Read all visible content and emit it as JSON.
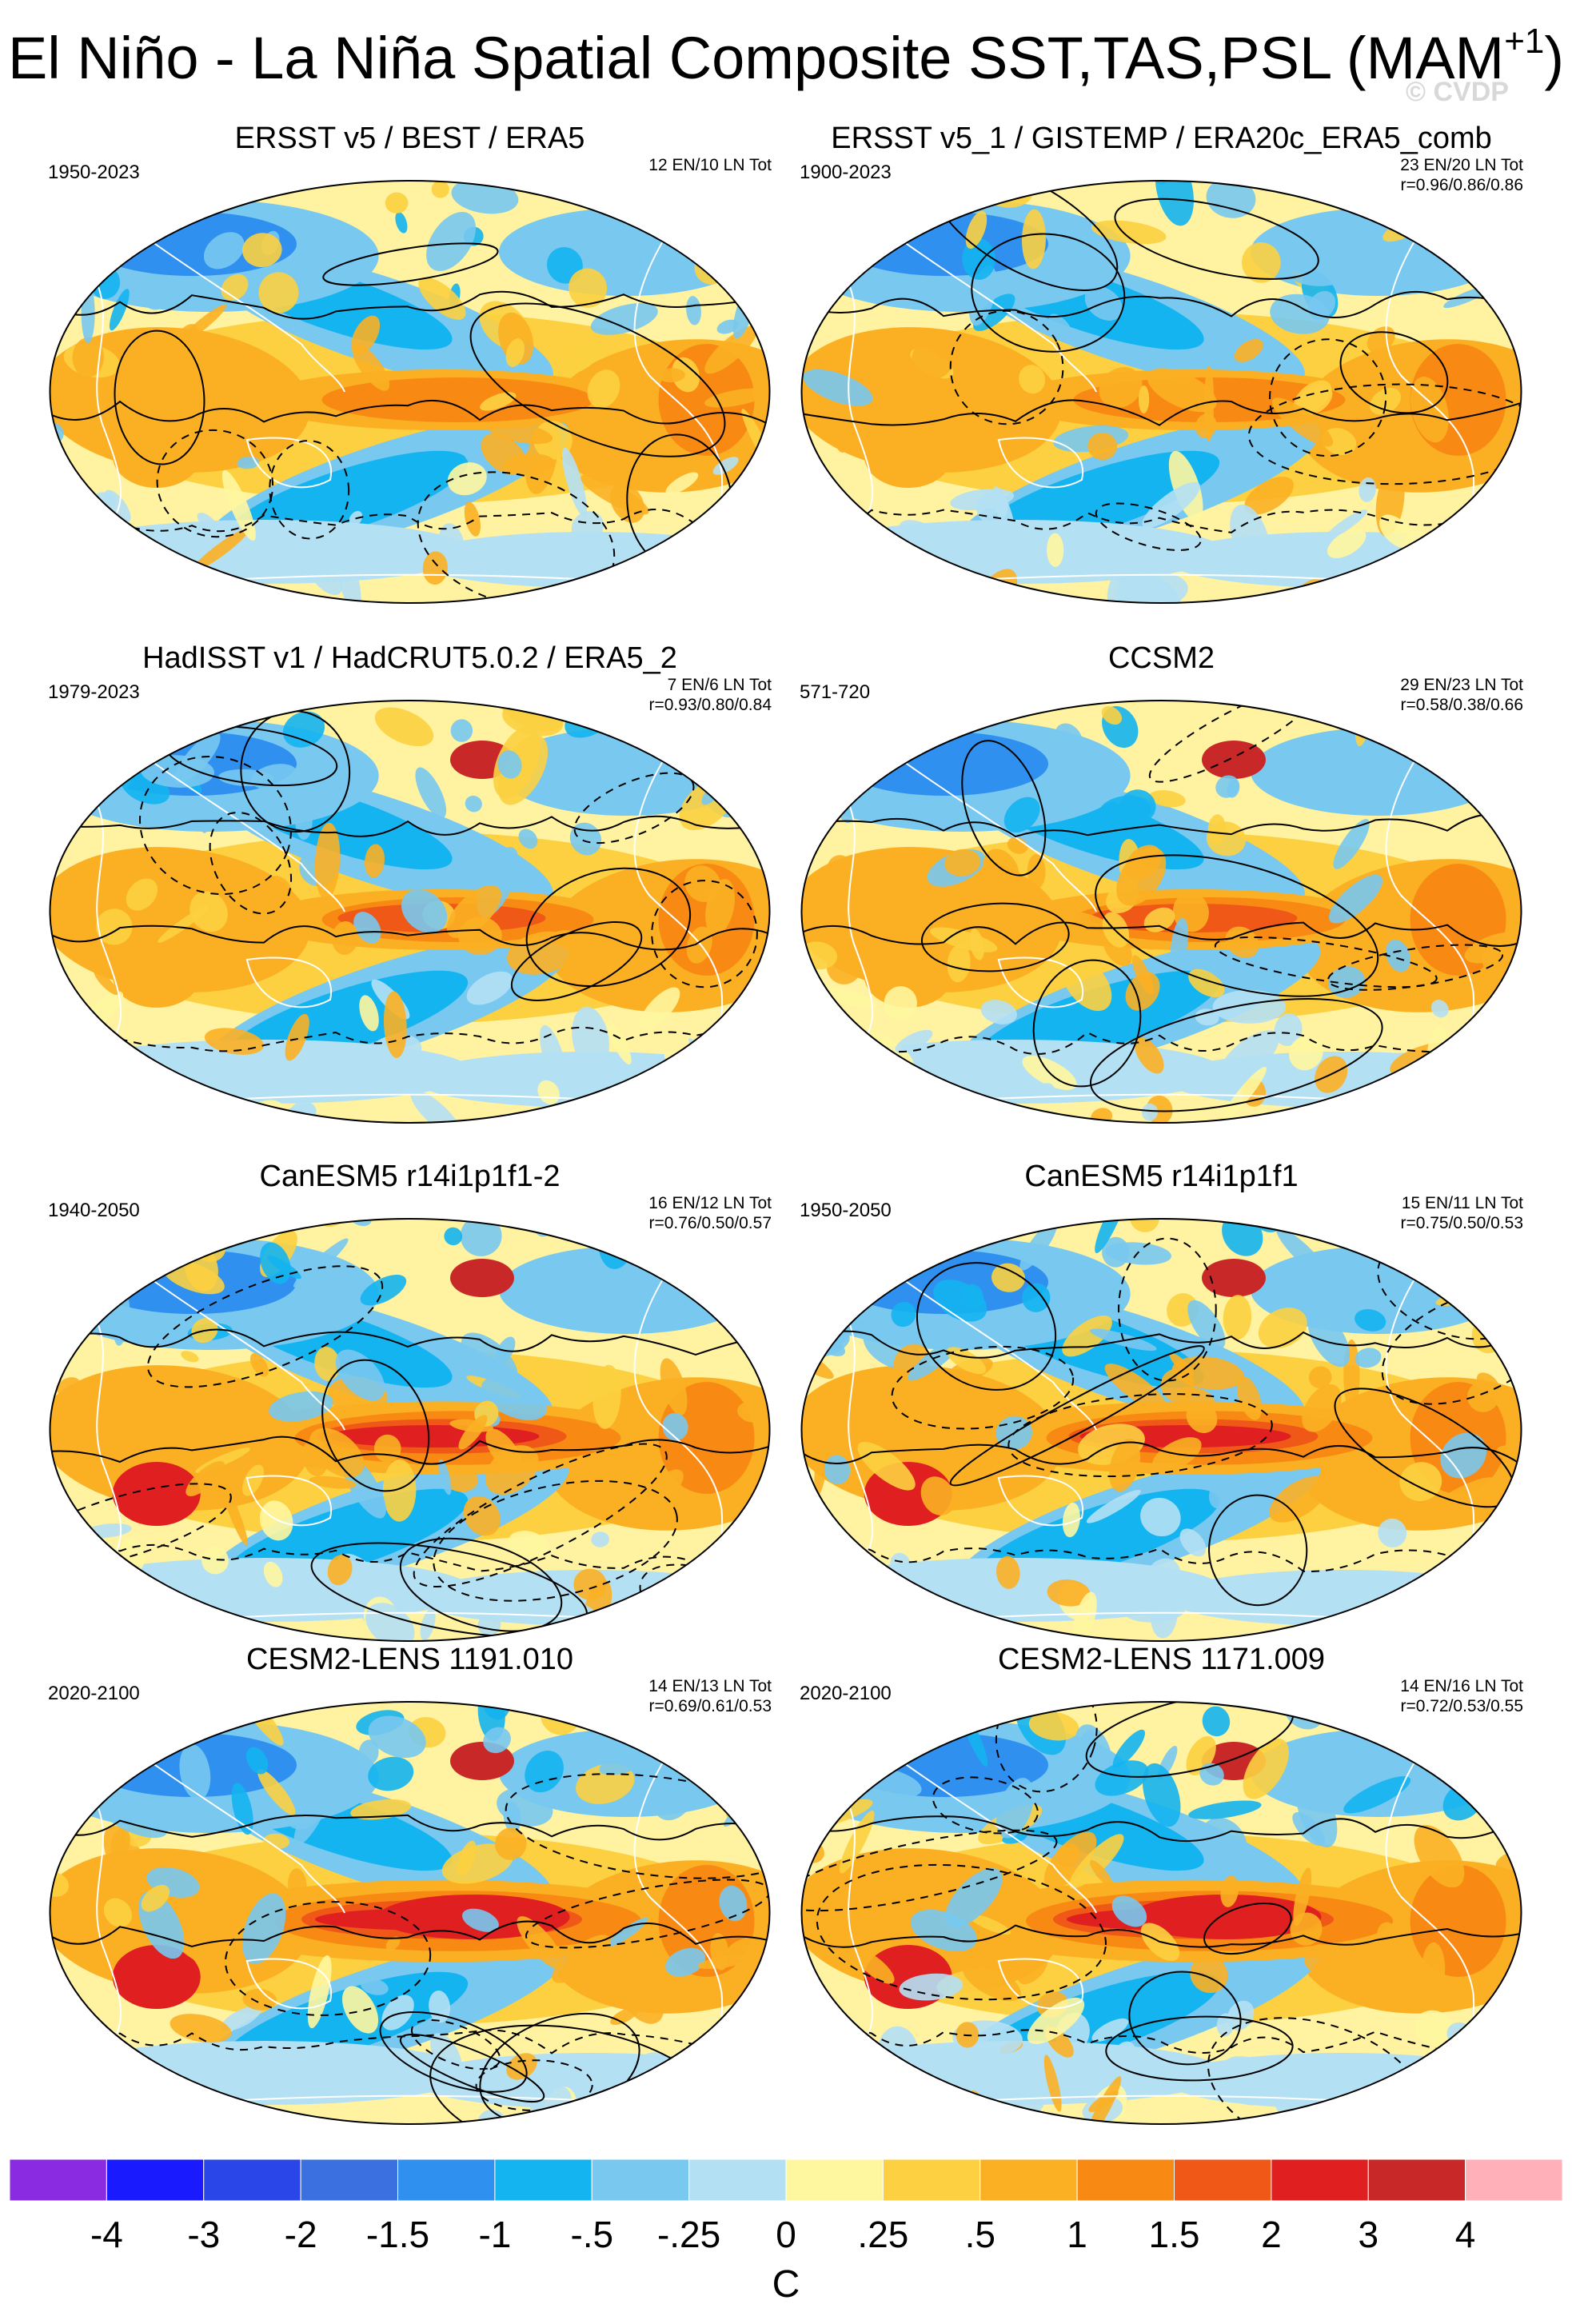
{
  "title": {
    "main": "El Niño - La Niña Spatial Composite SST,TAS,PSL (MAM",
    "superscript": "+1",
    "close": ")"
  },
  "watermark": "© CVDP",
  "panels": [
    {
      "title": "ERSST v5 / BEST / ERA5",
      "period": "1950-2023",
      "counts": "12 EN/10 LN Tot",
      "corr": ""
    },
    {
      "title": "ERSST v5_1 / GISTEMP / ERA20c_ERA5_comb",
      "period": "1900-2023",
      "counts": "23 EN/20 LN Tot",
      "corr": "r=0.96/0.86/0.86"
    },
    {
      "title": "HadISST v1 / HadCRUT5.0.2 / ERA5_2",
      "period": "1979-2023",
      "counts": "7 EN/6 LN Tot",
      "corr": "r=0.93/0.80/0.84"
    },
    {
      "title": "CCSM2",
      "period": "571-720",
      "counts": "29 EN/23 LN Tot",
      "corr": "r=0.58/0.38/0.66"
    },
    {
      "title": "CanESM5 r14i1p1f1-2",
      "period": "1940-2050",
      "counts": "16 EN/12 LN Tot",
      "corr": "r=0.76/0.50/0.57"
    },
    {
      "title": "CanESM5 r14i1p1f1",
      "period": "1950-2050",
      "counts": "15 EN/11 LN Tot",
      "corr": "r=0.75/0.50/0.53"
    },
    {
      "title": "CESM2-LENS 1191.010",
      "period": "2020-2100",
      "counts": "14 EN/13 LN Tot",
      "corr": "r=0.69/0.61/0.53"
    },
    {
      "title": "CESM2-LENS 1171.009",
      "period": "2020-2100",
      "counts": "14 EN/16 LN Tot",
      "corr": "r=0.72/0.53/0.55"
    }
  ],
  "chart_data": {
    "type": "heatmap",
    "title": "El Niño - La Niña Spatial Composite SST,TAS,PSL (MAM+1)",
    "projection": "robinson",
    "variables": [
      "SST",
      "TAS",
      "PSL"
    ],
    "season": "MAM+1",
    "colorbar": {
      "unit": "C",
      "levels": [
        "-4",
        "-3",
        "-2",
        "-1.5",
        "-1",
        "-.5",
        "-.25",
        "0",
        ".25",
        ".5",
        "1",
        "1.5",
        "2",
        "3",
        "4"
      ],
      "colors": [
        "#8a2be2",
        "#1a1aff",
        "#2a45e8",
        "#3a70e0",
        "#2f90f0",
        "#14b4f0",
        "#78c8f0",
        "#b4e0f4",
        "#fff6a0",
        "#fcd040",
        "#fbb024",
        "#f88a14",
        "#f05818",
        "#e02020",
        "#c82828",
        "#ffb0b8"
      ]
    },
    "panels": [
      {
        "title": "ERSST v5 / BEST / ERA5",
        "years": "1950-2023",
        "en": 12,
        "ln": 10
      },
      {
        "title": "ERSST v5_1 / GISTEMP / ERA20c_ERA5_comb",
        "years": "1900-2023",
        "en": 23,
        "ln": 20,
        "r": [
          0.96,
          0.86,
          0.86
        ]
      },
      {
        "title": "HadISST v1 / HadCRUT5.0.2 / ERA5_2",
        "years": "1979-2023",
        "en": 7,
        "ln": 6,
        "r": [
          0.93,
          0.8,
          0.84
        ]
      },
      {
        "title": "CCSM2",
        "years": "571-720",
        "en": 29,
        "ln": 23,
        "r": [
          0.58,
          0.38,
          0.66
        ]
      },
      {
        "title": "CanESM5 r14i1p1f1-2",
        "years": "1940-2050",
        "en": 16,
        "ln": 12,
        "r": [
          0.76,
          0.5,
          0.57
        ]
      },
      {
        "title": "CanESM5 r14i1p1f1",
        "years": "1950-2050",
        "en": 15,
        "ln": 11,
        "r": [
          0.75,
          0.5,
          0.53
        ]
      },
      {
        "title": "CESM2-LENS 1191.010",
        "years": "2020-2100",
        "en": 14,
        "ln": 13,
        "r": [
          0.69,
          0.61,
          0.53
        ]
      },
      {
        "title": "CESM2-LENS 1171.009",
        "years": "2020-2100",
        "en": 14,
        "ln": 16,
        "r": [
          0.72,
          0.53,
          0.55
        ]
      }
    ]
  }
}
